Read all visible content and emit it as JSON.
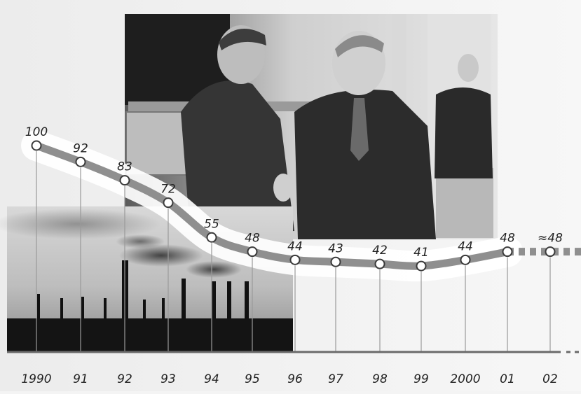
{
  "chart_data": {
    "type": "line",
    "x": [
      "1990",
      "91",
      "92",
      "93",
      "94",
      "95",
      "96",
      "97",
      "98",
      "99",
      "2000",
      "01",
      "02"
    ],
    "series": [
      {
        "values": [
          100,
          92,
          83,
          72,
          55,
          48,
          44,
          43,
          42,
          41,
          44,
          48,
          48
        ],
        "point_labels": [
          "100",
          "92",
          "83",
          "72",
          "55",
          "48",
          "44",
          "43",
          "42",
          "41",
          "44",
          "48",
          "≈48"
        ],
        "estimated_from_index": 11
      }
    ],
    "ylim": [
      40,
      100
    ],
    "grid": false,
    "title": "",
    "xlabel": "",
    "ylabel": "",
    "colors": {
      "line": "#8f8f8f",
      "band": "#ffffff",
      "marker_fill": "#ffffff",
      "marker_stroke": "#3a3a3a"
    }
  },
  "photos": {
    "handshake": "photo-handshake",
    "factory": "photo-factory-smokestacks"
  }
}
